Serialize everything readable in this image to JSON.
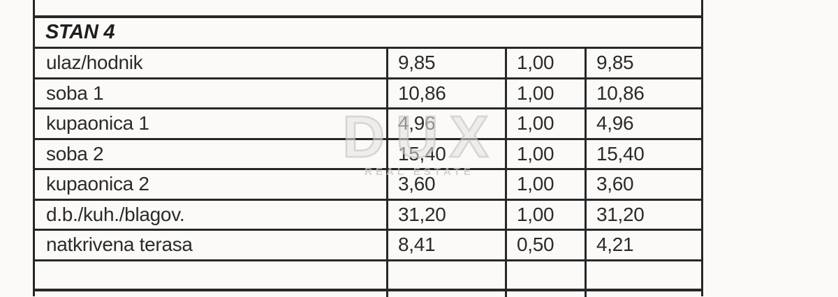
{
  "table": {
    "section_title": "STAN 4",
    "rows": [
      {
        "label": "ulaz/hodnik",
        "area": "9,85",
        "coef": "1,00",
        "reduced": "9,85"
      },
      {
        "label": "soba 1",
        "area": "10,86",
        "coef": "1,00",
        "reduced": "10,86"
      },
      {
        "label": "kupaonica 1",
        "area": "4,96",
        "coef": "1,00",
        "reduced": "4,96"
      },
      {
        "label": "soba 2",
        "area": "15,40",
        "coef": "1,00",
        "reduced": "15,40"
      },
      {
        "label": "kupaonica 2",
        "area": "3,60",
        "coef": "1,00",
        "reduced": "3,60"
      },
      {
        "label": "d.b./kuh./blagov.",
        "area": "31,20",
        "coef": "1,00",
        "reduced": "31,20"
      },
      {
        "label": "natkrivena terasa",
        "area": "8,41",
        "coef": "0,50",
        "reduced": "4,21"
      },
      {
        "label": "",
        "area": "",
        "coef": "",
        "reduced": ""
      }
    ]
  },
  "watermark": {
    "line1": "DUX",
    "line2": "REAL ESTATE"
  },
  "colors": {
    "paper": "#fbfaf8",
    "line": "#272727",
    "ink": "#2b2b2b"
  }
}
